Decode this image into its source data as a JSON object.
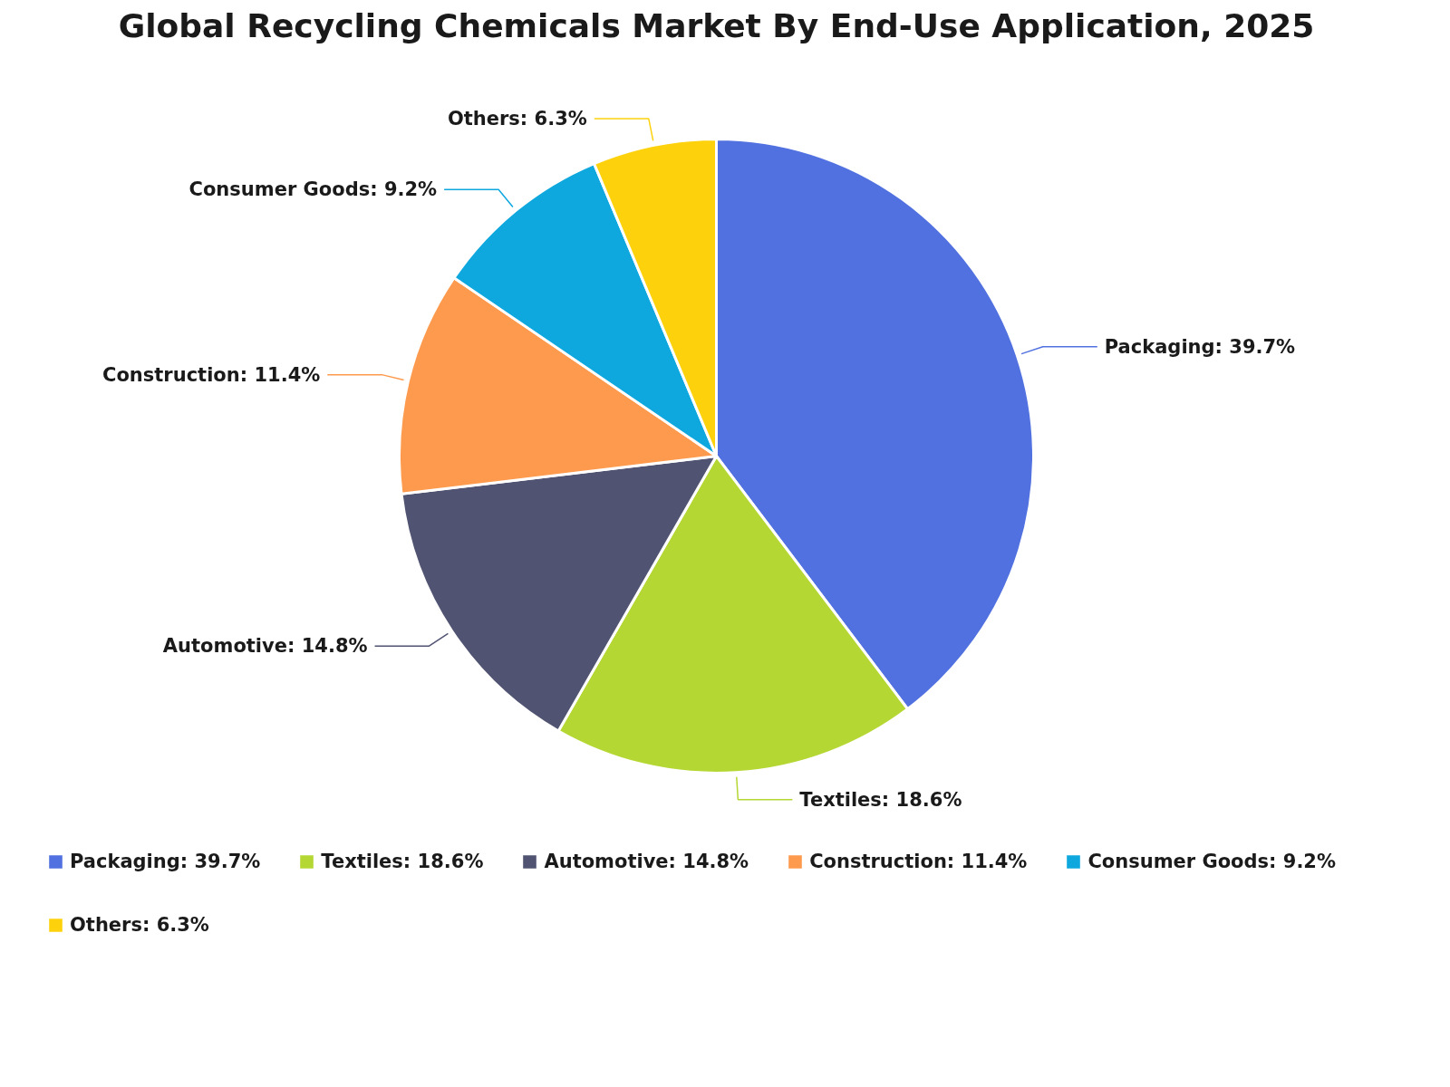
{
  "chart_data": {
    "type": "pie",
    "title": "Global Recycling Chemicals Market By End-Use Application, 2025",
    "categories": [
      "Packaging",
      "Textiles",
      "Automotive",
      "Construction",
      "Consumer Goods",
      "Others"
    ],
    "values": [
      39.7,
      18.6,
      14.8,
      11.4,
      9.2,
      6.3
    ],
    "value_labels": [
      "39.7%",
      "18.6%",
      "14.8%",
      "11.4%",
      "9.2%",
      "6.3%"
    ],
    "colors": [
      "#5171e0",
      "#b5d733",
      "#505371",
      "#fd9a4d",
      "#0ea8df",
      "#fdd20d"
    ],
    "legend": "bottom"
  }
}
